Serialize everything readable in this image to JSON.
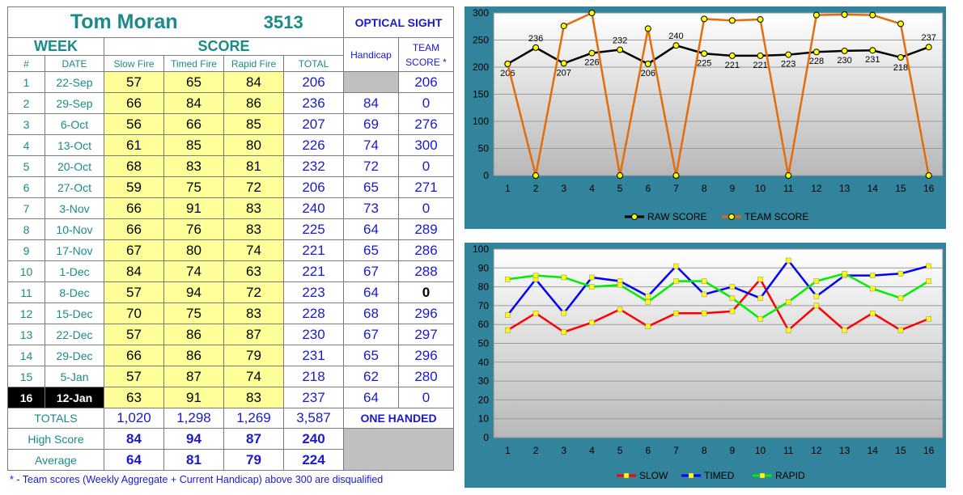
{
  "shooter": {
    "name": "Tom Moran",
    "id": "3513",
    "sight": "OPTICAL SIGHT"
  },
  "headers": {
    "week": "WEEK",
    "score": "SCORE",
    "handicap": "Handicap",
    "team_line1": "TEAM",
    "team_line2": "SCORE *",
    "num": "#",
    "date": "DATE",
    "slow": "Slow Fire",
    "timed": "Timed Fire",
    "rapid": "Rapid Fire",
    "total": "TOTAL"
  },
  "rows": [
    {
      "n": "1",
      "date": "22-Sep",
      "slow": "57",
      "timed": "65",
      "rapid": "84",
      "total": "206",
      "handicap": "",
      "team": "206"
    },
    {
      "n": "2",
      "date": "29-Sep",
      "slow": "66",
      "timed": "84",
      "rapid": "86",
      "total": "236",
      "handicap": "84",
      "team": "0"
    },
    {
      "n": "3",
      "date": "6-Oct",
      "slow": "56",
      "timed": "66",
      "rapid": "85",
      "total": "207",
      "handicap": "69",
      "team": "276"
    },
    {
      "n": "4",
      "date": "13-Oct",
      "slow": "61",
      "timed": "85",
      "rapid": "80",
      "total": "226",
      "handicap": "74",
      "team": "300"
    },
    {
      "n": "5",
      "date": "20-Oct",
      "slow": "68",
      "timed": "83",
      "rapid": "81",
      "total": "232",
      "handicap": "72",
      "team": "0"
    },
    {
      "n": "6",
      "date": "27-Oct",
      "slow": "59",
      "timed": "75",
      "rapid": "72",
      "total": "206",
      "handicap": "65",
      "team": "271"
    },
    {
      "n": "7",
      "date": "3-Nov",
      "slow": "66",
      "timed": "91",
      "rapid": "83",
      "total": "240",
      "handicap": "73",
      "team": "0"
    },
    {
      "n": "8",
      "date": "10-Nov",
      "slow": "66",
      "timed": "76",
      "rapid": "83",
      "total": "225",
      "handicap": "64",
      "team": "289"
    },
    {
      "n": "9",
      "date": "17-Nov",
      "slow": "67",
      "timed": "80",
      "rapid": "74",
      "total": "221",
      "handicap": "65",
      "team": "286"
    },
    {
      "n": "10",
      "date": "1-Dec",
      "slow": "84",
      "timed": "74",
      "rapid": "63",
      "total": "221",
      "handicap": "67",
      "team": "288"
    },
    {
      "n": "11",
      "date": "8-Dec",
      "slow": "57",
      "timed": "94",
      "rapid": "72",
      "total": "223",
      "handicap": "64",
      "team": "0"
    },
    {
      "n": "12",
      "date": "15-Dec",
      "slow": "70",
      "timed": "75",
      "rapid": "83",
      "total": "228",
      "handicap": "68",
      "team": "296"
    },
    {
      "n": "13",
      "date": "22-Dec",
      "slow": "57",
      "timed": "86",
      "rapid": "87",
      "total": "230",
      "handicap": "67",
      "team": "297"
    },
    {
      "n": "14",
      "date": "29-Dec",
      "slow": "66",
      "timed": "86",
      "rapid": "79",
      "total": "231",
      "handicap": "65",
      "team": "296"
    },
    {
      "n": "15",
      "date": "5-Jan",
      "slow": "57",
      "timed": "87",
      "rapid": "74",
      "total": "218",
      "handicap": "62",
      "team": "280"
    },
    {
      "n": "16",
      "date": "12-Jan",
      "slow": "63",
      "timed": "91",
      "rapid": "83",
      "total": "237",
      "handicap": "64",
      "team": "0"
    }
  ],
  "totals": {
    "label": "TOTALS",
    "slow": "1,020",
    "timed": "1,298",
    "rapid": "1,269",
    "total": "3,587",
    "note": "ONE HANDED"
  },
  "high": {
    "label": "High Score",
    "slow": "84",
    "timed": "94",
    "rapid": "87",
    "total": "240"
  },
  "average": {
    "label": "Average",
    "slow": "64",
    "timed": "81",
    "rapid": "79",
    "total": "224"
  },
  "footnote": "* - Team scores (Weekly Aggregate + Current Handicap) above 300 are disqualified",
  "colors": {
    "raw": "#000000",
    "team": "#e46c0a",
    "slow": "#ff0000",
    "timed": "#0000ff",
    "rapid": "#00ee00",
    "marker": "#ffff00",
    "panel": "#31849b"
  },
  "chart_data": [
    {
      "type": "line",
      "x": [
        1,
        2,
        3,
        4,
        5,
        6,
        7,
        8,
        9,
        10,
        11,
        12,
        13,
        14,
        15,
        16
      ],
      "ylim": [
        0,
        300
      ],
      "yticks": [
        0,
        50,
        100,
        150,
        200,
        250,
        300
      ],
      "legend_position": "bottom",
      "series": [
        {
          "name": "RAW SCORE",
          "values": [
            206,
            236,
            207,
            226,
            232,
            206,
            240,
            225,
            221,
            221,
            223,
            228,
            230,
            231,
            218,
            237
          ]
        },
        {
          "name": "TEAM SCORE",
          "values": [
            206,
            0,
            276,
            300,
            0,
            271,
            0,
            289,
            286,
            288,
            0,
            296,
            297,
            296,
            280,
            0
          ]
        }
      ]
    },
    {
      "type": "line",
      "x": [
        1,
        2,
        3,
        4,
        5,
        6,
        7,
        8,
        9,
        10,
        11,
        12,
        13,
        14,
        15,
        16
      ],
      "ylim": [
        0,
        100
      ],
      "yticks": [
        0,
        10,
        20,
        30,
        40,
        50,
        60,
        70,
        80,
        90,
        100
      ],
      "legend_position": "bottom",
      "series": [
        {
          "name": "SLOW",
          "values": [
            57,
            66,
            56,
            61,
            68,
            59,
            66,
            66,
            67,
            84,
            57,
            70,
            57,
            66,
            57,
            63
          ]
        },
        {
          "name": "TIMED",
          "values": [
            65,
            84,
            66,
            85,
            83,
            75,
            91,
            76,
            80,
            74,
            94,
            75,
            86,
            86,
            87,
            91
          ]
        },
        {
          "name": "RAPID",
          "values": [
            84,
            86,
            85,
            80,
            81,
            72,
            83,
            83,
            74,
            63,
            72,
            83,
            87,
            79,
            74,
            83
          ]
        }
      ]
    }
  ]
}
